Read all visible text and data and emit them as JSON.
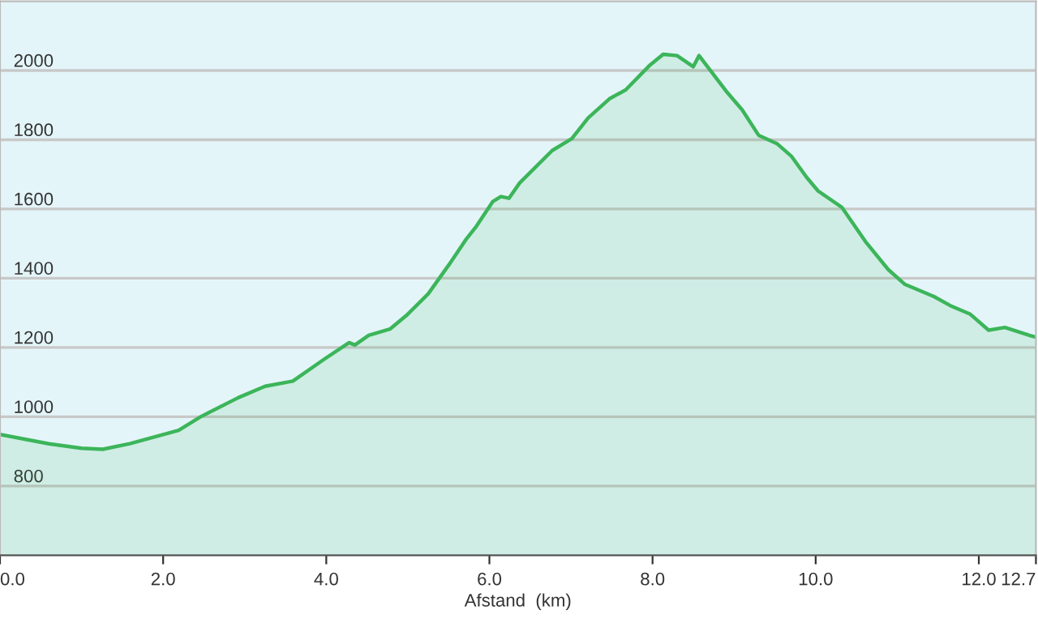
{
  "chart_data": {
    "type": "area",
    "xlabel": "Afstand  (km)",
    "x": [
      0,
      0.6,
      1.0,
      1.26,
      1.59,
      2.19,
      2.46,
      2.92,
      3.25,
      3.59,
      3.98,
      4.28,
      4.35,
      4.52,
      4.78,
      4.98,
      5.25,
      5.51,
      5.71,
      5.84,
      6.04,
      6.14,
      6.24,
      6.37,
      6.77,
      7.01,
      7.21,
      7.47,
      7.67,
      7.97,
      8.13,
      8.3,
      8.5,
      8.57,
      8.9,
      9.1,
      9.3,
      9.53,
      9.7,
      9.89,
      10.03,
      10.32,
      10.62,
      10.89,
      11.09,
      11.45,
      11.65,
      11.89,
      12.12,
      12.32,
      12.62,
      12.7
    ],
    "series": [
      {
        "color": "#3cb55a",
        "values": [
          949,
          922,
          909,
          906,
          922,
          961,
          1000,
          1055,
          1088,
          1103,
          1167,
          1214,
          1207,
          1235,
          1253,
          1292,
          1355,
          1441,
          1511,
          1550,
          1621,
          1636,
          1631,
          1675,
          1769,
          1803,
          1863,
          1918,
          1944,
          2016,
          2047,
          2043,
          2011,
          2043,
          1941,
          1886,
          1813,
          1788,
          1753,
          1691,
          1652,
          1605,
          1503,
          1425,
          1383,
          1347,
          1321,
          1297,
          1250,
          1258,
          1235,
          1230
        ]
      }
    ],
    "xlim": [
      0,
      12.7
    ],
    "ylim": [
      600,
      2200
    ],
    "xticks": [
      {
        "value": 0,
        "label": "0.0"
      },
      {
        "value": 2,
        "label": "2.0"
      },
      {
        "value": 4,
        "label": "4.0"
      },
      {
        "value": 6,
        "label": "6.0"
      },
      {
        "value": 8,
        "label": "8.0"
      },
      {
        "value": 10,
        "label": "10.0"
      },
      {
        "value": 12,
        "label": "12.0"
      },
      12.7
    ],
    "yticks": [
      800,
      1000,
      1200,
      1400,
      1600,
      1800,
      2000
    ],
    "grid": "y",
    "legend": false
  }
}
